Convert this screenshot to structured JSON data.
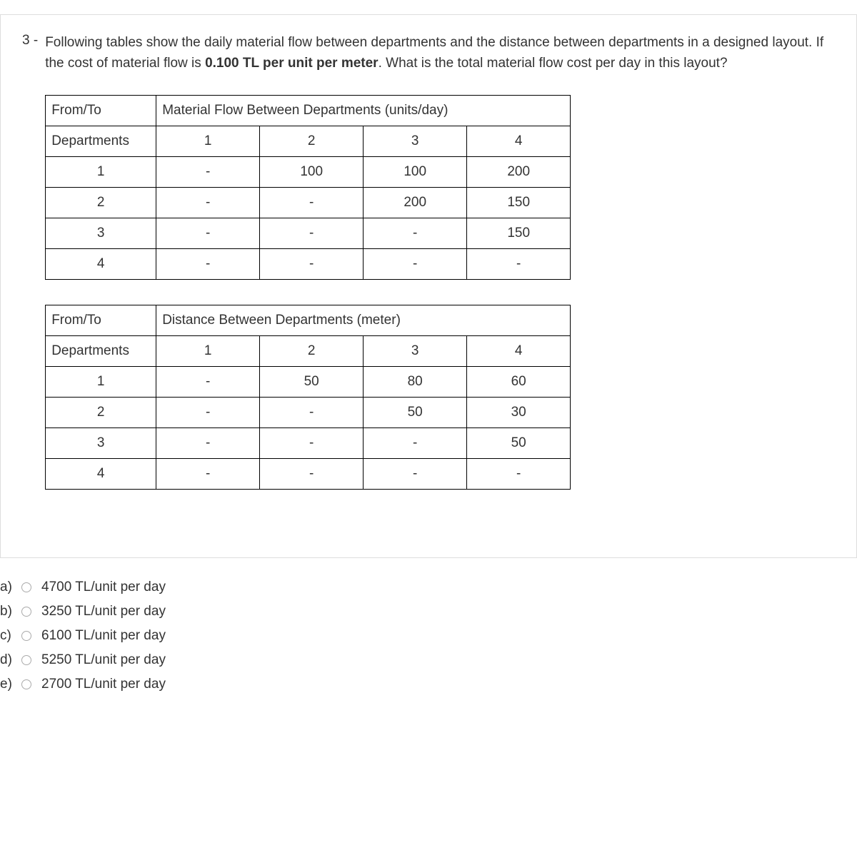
{
  "question": {
    "number": "3 -",
    "text_part1": "Following tables show the daily material flow between departments and the distance between departments in a designed layout. If the cost of material flow is ",
    "text_bold": "0.100 TL per unit per meter",
    "text_part2": ". What is the total material flow cost per day in this layout?"
  },
  "table1": {
    "header_left": "From/To",
    "header_right_pre": "Material Flow Between Departments (",
    "header_right_bold": "units/day",
    "header_right_post": ")",
    "subheader": "Departments",
    "columns": [
      "1",
      "2",
      "3",
      "4"
    ],
    "rows": [
      {
        "label": "1",
        "cells": [
          "-",
          "100",
          "100",
          "200"
        ]
      },
      {
        "label": "2",
        "cells": [
          "-",
          "-",
          "200",
          "150"
        ]
      },
      {
        "label": "3",
        "cells": [
          "-",
          "-",
          "-",
          "150"
        ]
      },
      {
        "label": "4",
        "cells": [
          "-",
          "-",
          "-",
          "-"
        ]
      }
    ]
  },
  "table2": {
    "header_left": "From/To",
    "header_right_pre": "Distance Between Departments (",
    "header_right_bold": "meter",
    "header_right_post": ")",
    "subheader": "Departments",
    "columns": [
      "1",
      "2",
      "3",
      "4"
    ],
    "rows": [
      {
        "label": "1",
        "cells": [
          "-",
          "50",
          "80",
          "60"
        ]
      },
      {
        "label": "2",
        "cells": [
          "-",
          "-",
          "50",
          "30"
        ]
      },
      {
        "label": "3",
        "cells": [
          "-",
          "-",
          "-",
          "50"
        ]
      },
      {
        "label": "4",
        "cells": [
          "-",
          "-",
          "-",
          "-"
        ]
      }
    ]
  },
  "options": [
    {
      "letter": "a)",
      "text": "4700 TL/unit per day"
    },
    {
      "letter": "b)",
      "text": "3250 TL/unit per day"
    },
    {
      "letter": "c)",
      "text": "6100 TL/unit per day"
    },
    {
      "letter": "d)",
      "text": "5250 TL/unit per day"
    },
    {
      "letter": "e)",
      "text": "2700 TL/unit per day"
    }
  ]
}
